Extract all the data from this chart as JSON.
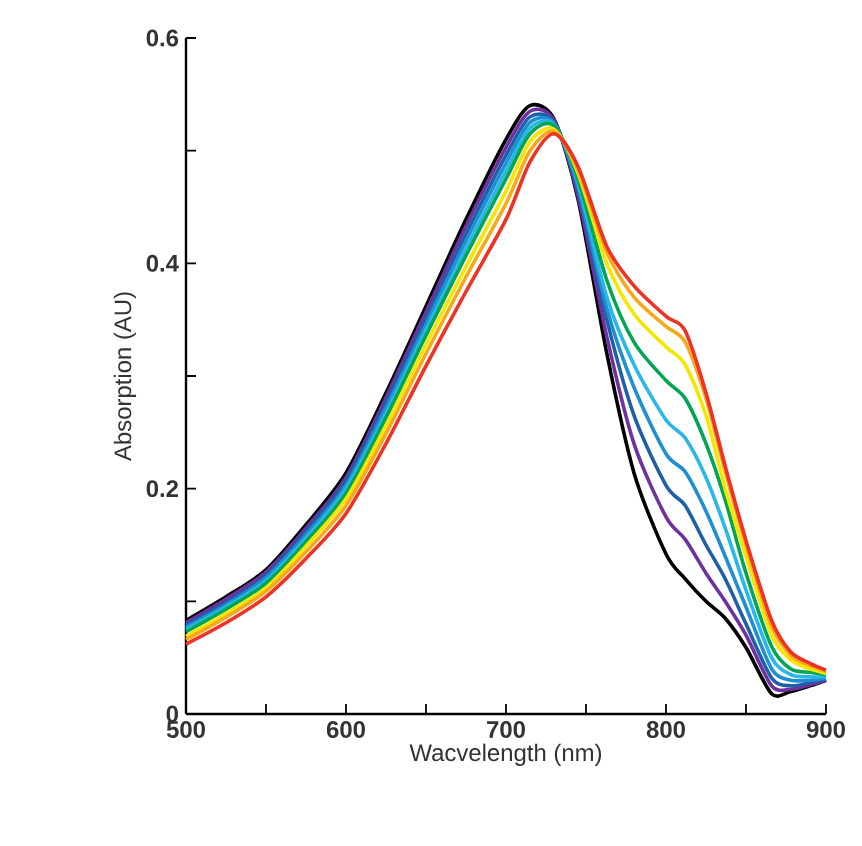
{
  "chart_data": {
    "type": "line",
    "xlabel": "Wacvelength (nm)",
    "ylabel": "Absorption (AU)",
    "x": [
      500,
      525,
      550,
      575,
      600,
      625,
      650,
      675,
      700,
      715,
      730,
      745,
      763,
      780,
      800,
      812,
      825,
      837,
      850,
      866,
      878,
      890,
      900
    ],
    "xlim": [
      500,
      900
    ],
    "xticks": [
      500,
      {
        "value": 550,
        "label": null
      },
      600,
      {
        "value": 650,
        "label": null
      },
      700,
      {
        "value": 750,
        "label": null
      },
      800,
      {
        "value": 850,
        "label": null
      },
      900
    ],
    "ylim": [
      0,
      0.6
    ],
    "yticks": [
      0,
      {
        "value": 0.1,
        "label": null
      },
      0.2,
      {
        "value": 0.3,
        "label": null
      },
      0.4,
      {
        "value": 0.5,
        "label": null
      },
      0.6
    ],
    "marker": "none",
    "line_style": "solid",
    "series": [
      {
        "color": "#000000",
        "values": [
          0.083,
          0.104,
          0.128,
          0.168,
          0.214,
          0.285,
          0.362,
          0.439,
          0.51,
          0.54,
          0.528,
          0.457,
          0.32,
          0.214,
          0.142,
          0.12,
          0.1,
          0.085,
          0.059,
          0.018,
          0.02,
          0.025,
          0.03
        ]
      },
      {
        "color": "#7030a0",
        "values": [
          0.081,
          0.102,
          0.126,
          0.165,
          0.21,
          0.281,
          0.357,
          0.433,
          0.503,
          0.535,
          0.527,
          0.46,
          0.335,
          0.24,
          0.175,
          0.155,
          0.125,
          0.1,
          0.07,
          0.025,
          0.022,
          0.026,
          0.03
        ]
      },
      {
        "color": "#1f5fa8",
        "values": [
          0.079,
          0.099,
          0.123,
          0.162,
          0.207,
          0.276,
          0.351,
          0.426,
          0.496,
          0.53,
          0.525,
          0.465,
          0.35,
          0.265,
          0.203,
          0.185,
          0.15,
          0.12,
          0.08,
          0.032,
          0.025,
          0.028,
          0.031
        ]
      },
      {
        "color": "#1e8fd0",
        "values": [
          0.077,
          0.097,
          0.121,
          0.159,
          0.203,
          0.272,
          0.346,
          0.42,
          0.489,
          0.525,
          0.524,
          0.468,
          0.36,
          0.29,
          0.231,
          0.215,
          0.18,
          0.14,
          0.095,
          0.04,
          0.03,
          0.03,
          0.032
        ]
      },
      {
        "color": "#29b6e8",
        "values": [
          0.075,
          0.095,
          0.118,
          0.156,
          0.2,
          0.267,
          0.341,
          0.413,
          0.482,
          0.52,
          0.523,
          0.472,
          0.37,
          0.31,
          0.261,
          0.245,
          0.21,
          0.165,
          0.11,
          0.05,
          0.035,
          0.033,
          0.033
        ]
      },
      {
        "color": "#00a651",
        "values": [
          0.073,
          0.093,
          0.116,
          0.153,
          0.196,
          0.263,
          0.336,
          0.407,
          0.475,
          0.515,
          0.522,
          0.475,
          0.385,
          0.33,
          0.296,
          0.28,
          0.24,
          0.19,
          0.125,
          0.06,
          0.04,
          0.037,
          0.035
        ]
      },
      {
        "color": "#f5e600",
        "values": [
          0.069,
          0.089,
          0.112,
          0.149,
          0.191,
          0.256,
          0.328,
          0.397,
          0.464,
          0.508,
          0.519,
          0.48,
          0.4,
          0.355,
          0.326,
          0.31,
          0.265,
          0.2,
          0.14,
          0.07,
          0.048,
          0.04,
          0.036
        ]
      },
      {
        "color": "#f7a81b",
        "values": [
          0.066,
          0.086,
          0.109,
          0.144,
          0.185,
          0.249,
          0.32,
          0.388,
          0.453,
          0.5,
          0.517,
          0.483,
          0.41,
          0.37,
          0.344,
          0.33,
          0.28,
          0.215,
          0.15,
          0.078,
          0.052,
          0.043,
          0.038
        ]
      },
      {
        "color": "#ee3224",
        "values": [
          0.062,
          0.081,
          0.104,
          0.138,
          0.178,
          0.24,
          0.309,
          0.375,
          0.439,
          0.49,
          0.515,
          0.486,
          0.415,
          0.38,
          0.353,
          0.34,
          0.285,
          0.22,
          0.154,
          0.083,
          0.055,
          0.045,
          0.039
        ]
      }
    ]
  }
}
